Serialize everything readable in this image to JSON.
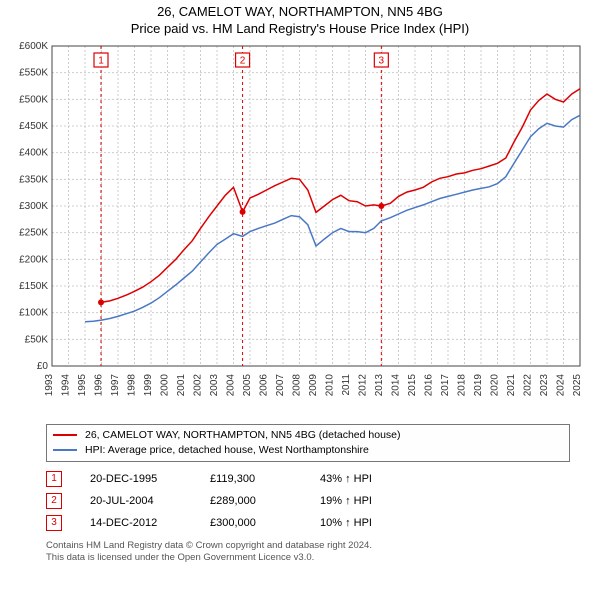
{
  "title_line1": "26, CAMELOT WAY, NORTHAMPTON, NN5 4BG",
  "title_line2": "Price paid vs. HM Land Registry's House Price Index (HPI)",
  "chart": {
    "type": "line",
    "background_color": "#ffffff",
    "grid_color": "#cccccc",
    "grid_dash": "2,2",
    "axis_color": "#444444",
    "tick_fontsize": 10,
    "x_years": [
      1993,
      1994,
      1995,
      1996,
      1997,
      1998,
      1999,
      2000,
      2001,
      2002,
      2003,
      2004,
      2005,
      2006,
      2007,
      2008,
      2009,
      2010,
      2011,
      2012,
      2013,
      2014,
      2015,
      2016,
      2017,
      2018,
      2019,
      2020,
      2021,
      2022,
      2023,
      2024,
      2025
    ],
    "ylim": [
      0,
      600000
    ],
    "ytick_step": 50000,
    "ytick_labels": [
      "£0",
      "£50K",
      "£100K",
      "£150K",
      "£200K",
      "£250K",
      "£300K",
      "£350K",
      "£400K",
      "£450K",
      "£500K",
      "£550K",
      "£600K"
    ],
    "series": [
      {
        "id": "price_paid",
        "color": "#dd0000",
        "width": 1.5,
        "x": [
          1995.97,
          1996.5,
          1997,
          1997.5,
          1998,
          1998.5,
          1999,
          1999.5,
          2000,
          2000.5,
          2001,
          2001.5,
          2002,
          2002.5,
          2003,
          2003.5,
          2004,
          2004.55,
          2005,
          2005.5,
          2006,
          2006.5,
          2007,
          2007.5,
          2008,
          2008.5,
          2009,
          2009.5,
          2010,
          2010.5,
          2011,
          2011.5,
          2012,
          2012.5,
          2012.96,
          2013.5,
          2014,
          2014.5,
          2015,
          2015.5,
          2016,
          2016.5,
          2017,
          2017.5,
          2018,
          2018.5,
          2019,
          2019.5,
          2020,
          2020.5,
          2021,
          2021.5,
          2022,
          2022.5,
          2023,
          2023.5,
          2024,
          2024.5,
          2025
        ],
        "y": [
          119300,
          122000,
          127000,
          133000,
          140000,
          148000,
          158000,
          170000,
          185000,
          200000,
          218000,
          235000,
          258000,
          280000,
          300000,
          320000,
          335000,
          289000,
          315000,
          322000,
          330000,
          338000,
          345000,
          352000,
          350000,
          330000,
          288000,
          300000,
          312000,
          320000,
          310000,
          308000,
          300000,
          302000,
          300000,
          305000,
          318000,
          326000,
          330000,
          335000,
          345000,
          352000,
          355000,
          360000,
          362000,
          367000,
          370000,
          375000,
          380000,
          390000,
          420000,
          448000,
          480000,
          498000,
          510000,
          500000,
          495000,
          510000,
          520000
        ]
      },
      {
        "id": "hpi",
        "color": "#4a78c4",
        "width": 1.5,
        "x": [
          1995,
          1995.5,
          1996,
          1996.5,
          1997,
          1997.5,
          1998,
          1998.5,
          1999,
          1999.5,
          2000,
          2000.5,
          2001,
          2001.5,
          2002,
          2002.5,
          2003,
          2003.5,
          2004,
          2004.55,
          2005,
          2005.5,
          2006,
          2006.5,
          2007,
          2007.5,
          2008,
          2008.5,
          2009,
          2009.5,
          2010,
          2010.5,
          2011,
          2011.5,
          2012,
          2012.5,
          2012.96,
          2013.5,
          2014,
          2014.5,
          2015,
          2015.5,
          2016,
          2016.5,
          2017,
          2017.5,
          2018,
          2018.5,
          2019,
          2019.5,
          2020,
          2020.5,
          2021,
          2021.5,
          2022,
          2022.5,
          2023,
          2023.5,
          2024,
          2024.5,
          2025
        ],
        "y": [
          83000,
          84000,
          86000,
          89000,
          93000,
          98000,
          103000,
          110000,
          118000,
          128000,
          140000,
          152000,
          165000,
          178000,
          195000,
          212000,
          228000,
          238000,
          248000,
          243000,
          252000,
          258000,
          263000,
          268000,
          275000,
          282000,
          280000,
          265000,
          225000,
          238000,
          250000,
          258000,
          252000,
          252000,
          250000,
          258000,
          272000,
          278000,
          285000,
          292000,
          297000,
          302000,
          308000,
          314000,
          318000,
          322000,
          326000,
          330000,
          333000,
          336000,
          342000,
          355000,
          380000,
          405000,
          430000,
          445000,
          455000,
          450000,
          448000,
          462000,
          470000
        ]
      }
    ],
    "sale_markers": [
      {
        "n": "1",
        "x": 1995.97,
        "y": 119300
      },
      {
        "n": "2",
        "x": 2004.55,
        "y": 289000
      },
      {
        "n": "3",
        "x": 2012.96,
        "y": 300000
      }
    ],
    "marker_border_color": "#dd0000",
    "marker_text_color": "#dd0000",
    "vline_color": "#dd0000",
    "vline_dash": "3,3",
    "point_fill": "#dd0000",
    "point_radius": 3
  },
  "legend": {
    "items": [
      {
        "color": "#dd0000",
        "label": "26, CAMELOT WAY, NORTHAMPTON, NN5 4BG (detached house)"
      },
      {
        "color": "#4a78c4",
        "label": "HPI: Average price, detached house, West Northamptonshire"
      }
    ]
  },
  "sales": [
    {
      "n": "1",
      "date": "20-DEC-1995",
      "price": "£119,300",
      "delta": "43% ↑ HPI"
    },
    {
      "n": "2",
      "date": "20-JUL-2004",
      "price": "£289,000",
      "delta": "19% ↑ HPI"
    },
    {
      "n": "3",
      "date": "14-DEC-2012",
      "price": "£300,000",
      "delta": "10% ↑ HPI"
    }
  ],
  "footnote_line1": "Contains HM Land Registry data © Crown copyright and database right 2024.",
  "footnote_line2": "This data is licensed under the Open Government Licence v3.0."
}
